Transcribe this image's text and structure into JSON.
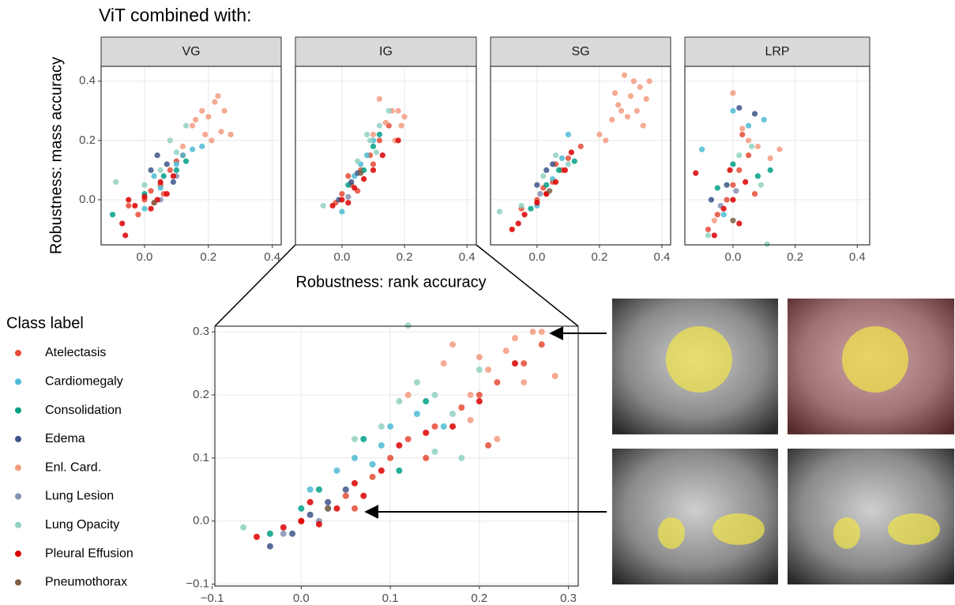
{
  "figure": {
    "title": "ViT combined with:",
    "x_label": "Robustness: rank accuracy",
    "y_label": "Robustness: mass accuracy"
  },
  "legend": {
    "title": "Class label",
    "items": [
      {
        "name": "Atelectasis",
        "color": "#E64B35"
      },
      {
        "name": "Cardiomegaly",
        "color": "#4DBBD5"
      },
      {
        "name": "Consolidation",
        "color": "#00A087"
      },
      {
        "name": "Edema",
        "color": "#3C5488"
      },
      {
        "name": "Enl. Card.",
        "color": "#F39B7F"
      },
      {
        "name": "Lung Lesion",
        "color": "#8491B4"
      },
      {
        "name": "Lung Opacity",
        "color": "#91D1C2"
      },
      {
        "name": "Pleural Effusion",
        "color": "#DC0000"
      },
      {
        "name": "Pneumothorax",
        "color": "#7E6148"
      }
    ]
  },
  "chart_data": [
    {
      "type": "scatter",
      "title": "VG",
      "grid": true,
      "xlim": [
        -0.136,
        0.428
      ],
      "ylim": [
        -0.152,
        0.45
      ],
      "xticks": [
        {
          "value": 0,
          "label": "0.0"
        },
        {
          "value": 0.2,
          "label": "0.2"
        },
        {
          "value": 0.4,
          "label": "0.4"
        }
      ],
      "yticks": [
        {
          "value": 0,
          "label": "0.0"
        },
        {
          "value": 0.2,
          "label": "0.2"
        },
        {
          "value": 0.4,
          "label": "0.4"
        }
      ],
      "series": [
        {
          "x": [
            -0.05,
            0.0,
            0.02,
            0.05,
            0.08,
            0.1,
            0.03,
            0.12,
            -0.02,
            0.06
          ],
          "y": [
            -0.02,
            0.0,
            0.03,
            0.05,
            0.1,
            0.13,
            -0.01,
            0.15,
            -0.05,
            0.02
          ]
        },
        {
          "x": [
            0.0,
            0.05,
            0.1,
            0.15,
            0.18,
            0.12,
            0.03
          ],
          "y": [
            -0.03,
            0.04,
            0.12,
            0.17,
            0.18,
            0.15,
            0.08
          ]
        },
        {
          "x": [
            -0.1,
            0.0,
            0.06,
            0.1,
            0.13
          ],
          "y": [
            -0.05,
            0.02,
            0.08,
            0.1,
            0.13
          ]
        },
        {
          "x": [
            0.02,
            0.04,
            0.07,
            0.09
          ],
          "y": [
            0.1,
            0.15,
            0.12,
            0.06
          ]
        },
        {
          "x": [
            0.12,
            0.15,
            0.18,
            0.2,
            0.22,
            0.25,
            0.19,
            0.21,
            0.16,
            0.24,
            0.23,
            0.27
          ],
          "y": [
            0.18,
            0.25,
            0.3,
            0.28,
            0.33,
            0.3,
            0.22,
            0.2,
            0.27,
            0.23,
            0.35,
            0.22
          ]
        },
        {
          "x": [
            0.05,
            0.1
          ],
          "y": [
            0.0,
            0.08
          ]
        },
        {
          "x": [
            -0.09,
            0.0,
            0.05,
            0.1,
            0.13,
            0.08
          ],
          "y": [
            0.06,
            0.05,
            0.1,
            0.16,
            0.25,
            0.2
          ]
        },
        {
          "x": [
            -0.07,
            -0.03,
            0.0,
            0.02,
            0.05,
            0.07,
            -0.06,
            0.04,
            0.09,
            -0.05
          ],
          "y": [
            -0.08,
            -0.02,
            0.01,
            -0.03,
            0.06,
            0.02,
            -0.12,
            0.0,
            0.08,
            0.0
          ]
        },
        {
          "x": [
            0.03
          ],
          "y": [
            -0.01
          ]
        }
      ]
    },
    {
      "type": "scatter",
      "title": "IG",
      "grid": true,
      "xlim": [
        -0.149,
        0.43
      ],
      "ylim": [
        -0.152,
        0.45
      ],
      "xticks": [
        {
          "value": 0,
          "label": "0.0"
        },
        {
          "value": 0.2,
          "label": "0.2"
        },
        {
          "value": 0.4,
          "label": "0.4"
        }
      ],
      "yticks": [
        0,
        0.2,
        0.4
      ],
      "series": [
        {
          "x": [
            -0.02,
            0.0,
            0.03,
            0.06,
            0.09,
            0.12,
            0.15,
            0.05,
            0.1,
            0.02
          ],
          "y": [
            -0.01,
            0.02,
            0.05,
            0.1,
            0.15,
            0.2,
            0.25,
            0.03,
            0.12,
            0.08
          ]
        },
        {
          "x": [
            0.0,
            0.04,
            0.08,
            0.1,
            0.06
          ],
          "y": [
            -0.04,
            0.08,
            0.15,
            0.2,
            0.12
          ]
        },
        {
          "x": [
            0.02,
            0.07,
            0.1,
            0.12
          ],
          "y": [
            0.05,
            0.1,
            0.18,
            0.22
          ]
        },
        {
          "x": [
            -0.01,
            0.03,
            0.05
          ],
          "y": [
            0.0,
            0.06,
            0.09
          ]
        },
        {
          "x": [
            0.1,
            0.14,
            0.16,
            0.18,
            0.2,
            0.12,
            0.17,
            0.19
          ],
          "y": [
            0.22,
            0.26,
            0.3,
            0.3,
            0.28,
            0.34,
            0.2,
            0.25
          ]
        },
        {
          "x": [
            0.02
          ],
          "y": [
            0.01
          ]
        },
        {
          "x": [
            -0.06,
            0.05,
            0.09,
            0.12,
            0.15,
            0.08,
            0.11
          ],
          "y": [
            -0.02,
            0.13,
            0.2,
            0.25,
            0.3,
            0.22,
            0.16
          ]
        },
        {
          "x": [
            -0.03,
            0.0,
            0.02,
            0.04,
            0.07,
            0.1,
            0.13,
            0.18
          ],
          "y": [
            -0.02,
            0.0,
            -0.01,
            0.04,
            0.07,
            0.1,
            0.15,
            0.2
          ]
        },
        {
          "x": [
            0.06
          ],
          "y": [
            0.09
          ]
        }
      ]
    },
    {
      "type": "scatter",
      "title": "SG",
      "grid": true,
      "xlim": [
        -0.149,
        0.428
      ],
      "ylim": [
        -0.152,
        0.45
      ],
      "xticks": [
        {
          "value": 0,
          "label": "0.0"
        },
        {
          "value": 0.2,
          "label": "0.2"
        },
        {
          "value": 0.4,
          "label": "0.4"
        }
      ],
      "yticks": [
        0,
        0.2,
        0.4
      ],
      "series": [
        {
          "x": [
            -0.05,
            0.0,
            0.02,
            0.05,
            0.08,
            0.1,
            0.14,
            0.03,
            0.06
          ],
          "y": [
            -0.03,
            0.0,
            0.04,
            0.06,
            0.1,
            0.14,
            0.18,
            0.02,
            0.12
          ]
        },
        {
          "x": [
            0.0,
            0.05,
            0.08,
            0.1
          ],
          "y": [
            -0.02,
            0.07,
            0.14,
            0.22
          ]
        },
        {
          "x": [
            -0.02,
            0.03,
            0.07,
            0.12
          ],
          "y": [
            -0.03,
            0.05,
            0.1,
            0.13
          ]
        },
        {
          "x": [
            0.0,
            0.03,
            0.05
          ],
          "y": [
            0.05,
            0.1,
            0.12
          ]
        },
        {
          "x": [
            0.2,
            0.24,
            0.27,
            0.3,
            0.33,
            0.35,
            0.28,
            0.31,
            0.25,
            0.34,
            0.22,
            0.36,
            0.29,
            0.26,
            0.32
          ],
          "y": [
            0.22,
            0.27,
            0.3,
            0.35,
            0.38,
            0.34,
            0.42,
            0.4,
            0.36,
            0.25,
            0.2,
            0.4,
            0.28,
            0.32,
            0.3
          ]
        },
        {
          "x": [
            0.01
          ],
          "y": [
            0.02
          ]
        },
        {
          "x": [
            -0.12,
            -0.05,
            0.02,
            0.06,
            0.1
          ],
          "y": [
            -0.04,
            -0.02,
            0.08,
            0.15,
            0.12
          ]
        },
        {
          "x": [
            -0.08,
            -0.04,
            0.0,
            0.03,
            0.06,
            0.09,
            -0.06,
            0.11
          ],
          "y": [
            -0.1,
            -0.05,
            -0.01,
            0.02,
            0.06,
            0.1,
            -0.08,
            0.16
          ]
        },
        {
          "x": [
            0.04
          ],
          "y": [
            0.03
          ]
        }
      ]
    },
    {
      "type": "scatter",
      "title": "LRP",
      "grid": true,
      "xlim": [
        -0.155,
        0.44
      ],
      "ylim": [
        -0.152,
        0.45
      ],
      "xticks": [
        {
          "value": 0,
          "label": "0.0"
        },
        {
          "value": 0.2,
          "label": "0.2"
        },
        {
          "value": 0.4,
          "label": "0.4"
        }
      ],
      "yticks": [
        0,
        0.2,
        0.4
      ],
      "series": [
        {
          "x": [
            -0.05,
            -0.02,
            0.0,
            0.02,
            0.05,
            0.07,
            -0.08,
            0.03
          ],
          "y": [
            -0.05,
            0.0,
            0.05,
            0.1,
            0.15,
            0.02,
            -0.1,
            0.22
          ]
        },
        {
          "x": [
            -0.1,
            0.0,
            0.05,
            0.1,
            -0.03
          ],
          "y": [
            0.17,
            0.3,
            0.25,
            0.27,
            -0.05
          ]
        },
        {
          "x": [
            -0.05,
            0.0,
            0.08,
            0.12
          ],
          "y": [
            0.04,
            0.12,
            0.08,
            0.1
          ]
        },
        {
          "x": [
            -0.07,
            0.02,
            0.07,
            -0.02
          ],
          "y": [
            0.0,
            0.31,
            0.29,
            0.05
          ]
        },
        {
          "x": [
            0.0,
            0.03,
            0.08,
            0.12,
            0.15,
            0.05,
            -0.06
          ],
          "y": [
            0.36,
            0.24,
            0.18,
            0.14,
            0.17,
            0.2,
            -0.07
          ]
        },
        {
          "x": [
            -0.04,
            0.01
          ],
          "y": [
            -0.02,
            0.03
          ]
        },
        {
          "x": [
            -0.08,
            0.02,
            0.06,
            0.11,
            0.09
          ],
          "y": [
            -0.12,
            0.15,
            0.18,
            -0.15,
            0.05
          ]
        },
        {
          "x": [
            -0.12,
            -0.03,
            0.0,
            0.04,
            -0.06,
            0.02,
            -0.01
          ],
          "y": [
            0.09,
            -0.03,
            0.0,
            0.06,
            -0.12,
            -0.08,
            0.1
          ]
        },
        {
          "x": [
            0.0
          ],
          "y": [
            -0.07
          ]
        }
      ]
    },
    {
      "type": "scatter",
      "grid": true,
      "xlim": [
        -0.097,
        0.311
      ],
      "ylim": [
        -0.103,
        0.309
      ],
      "xticks": [
        {
          "value": -0.1,
          "label": "−0.1"
        },
        {
          "value": 0,
          "label": "0.0"
        },
        {
          "value": 0.1,
          "label": "0.1"
        },
        {
          "value": 0.2,
          "label": "0.2"
        },
        {
          "value": 0.3,
          "label": "0.3"
        }
      ],
      "yticks": [
        {
          "value": -0.1,
          "label": "−0.1"
        },
        {
          "value": 0,
          "label": "0.0"
        },
        {
          "value": 0.1,
          "label": "0.1"
        },
        {
          "value": 0.2,
          "label": "0.2"
        },
        {
          "value": 0.3,
          "label": "0.3"
        }
      ],
      "series": [
        {
          "x": [
            0.0,
            0.03,
            0.05,
            0.08,
            0.1,
            0.12,
            0.15,
            0.18,
            0.2,
            0.22,
            0.25,
            0.27,
            0.06,
            0.14,
            0.21
          ],
          "y": [
            0.0,
            0.02,
            0.04,
            0.07,
            0.1,
            0.13,
            0.15,
            0.18,
            0.2,
            0.22,
            0.25,
            0.28,
            0.02,
            0.1,
            0.12
          ]
        },
        {
          "x": [
            0.01,
            0.04,
            0.06,
            0.09,
            0.1,
            0.13,
            0.16,
            0.03,
            0.08
          ],
          "y": [
            0.05,
            0.08,
            0.1,
            0.12,
            0.15,
            0.17,
            0.15,
            0.02,
            0.09
          ]
        },
        {
          "x": [
            -0.035,
            0.0,
            0.02,
            0.07,
            0.11,
            0.14
          ],
          "y": [
            -0.02,
            0.02,
            0.05,
            0.13,
            0.08,
            0.19
          ]
        },
        {
          "x": [
            -0.035,
            -0.01,
            0.01,
            0.03,
            0.05
          ],
          "y": [
            -0.04,
            -0.02,
            0.01,
            0.03,
            0.05
          ]
        },
        {
          "x": [
            0.12,
            0.16,
            0.19,
            0.21,
            0.23,
            0.24,
            0.26,
            0.27,
            0.285,
            0.2,
            0.25,
            0.17,
            0.22,
            0.19
          ],
          "y": [
            0.2,
            0.25,
            0.2,
            0.24,
            0.27,
            0.29,
            0.3,
            0.3,
            0.23,
            0.26,
            0.22,
            0.28,
            0.13,
            0.16
          ]
        },
        {
          "x": [
            -0.02,
            0.02
          ],
          "y": [
            -0.02,
            0.0
          ]
        },
        {
          "x": [
            -0.065,
            0.06,
            0.09,
            0.11,
            0.13,
            0.15,
            0.17,
            0.18,
            0.2,
            0.15,
            0.12
          ],
          "y": [
            -0.01,
            0.13,
            0.15,
            0.19,
            0.22,
            0.2,
            0.17,
            0.1,
            0.24,
            0.11,
            0.31
          ]
        },
        {
          "x": [
            -0.05,
            -0.02,
            0.0,
            0.02,
            0.04,
            0.07,
            0.09,
            0.11,
            0.14,
            0.17,
            0.2,
            0.24,
            0.01,
            0.06
          ],
          "y": [
            -0.025,
            -0.01,
            0.0,
            -0.005,
            0.02,
            0.04,
            0.08,
            0.12,
            0.14,
            0.15,
            0.19,
            0.25,
            0.03,
            0.06
          ]
        },
        {
          "x": [
            0.03
          ],
          "y": [
            0.02
          ]
        }
      ]
    }
  ]
}
